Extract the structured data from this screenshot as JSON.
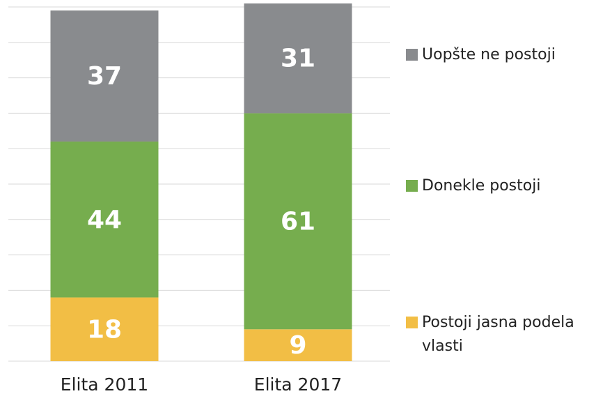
{
  "chart_data": {
    "type": "stacked_bar",
    "categories": [
      "Elita 2011",
      "Elita 2017"
    ],
    "series": [
      {
        "name": "Postoji jasna podela vlasti",
        "color": "#f2be45",
        "values": [
          18,
          9
        ]
      },
      {
        "name": "Donekle postoji",
        "color": "#76ad4e",
        "values": [
          44,
          61
        ]
      },
      {
        "name": "Uopšte ne postoji",
        "color": "#898b8e",
        "values": [
          37,
          31
        ]
      }
    ],
    "ylim": [
      0,
      100
    ],
    "yticks": [
      0,
      10,
      20,
      30,
      40,
      50,
      60,
      70,
      80,
      90,
      100
    ],
    "grid": true,
    "legend": "right"
  }
}
